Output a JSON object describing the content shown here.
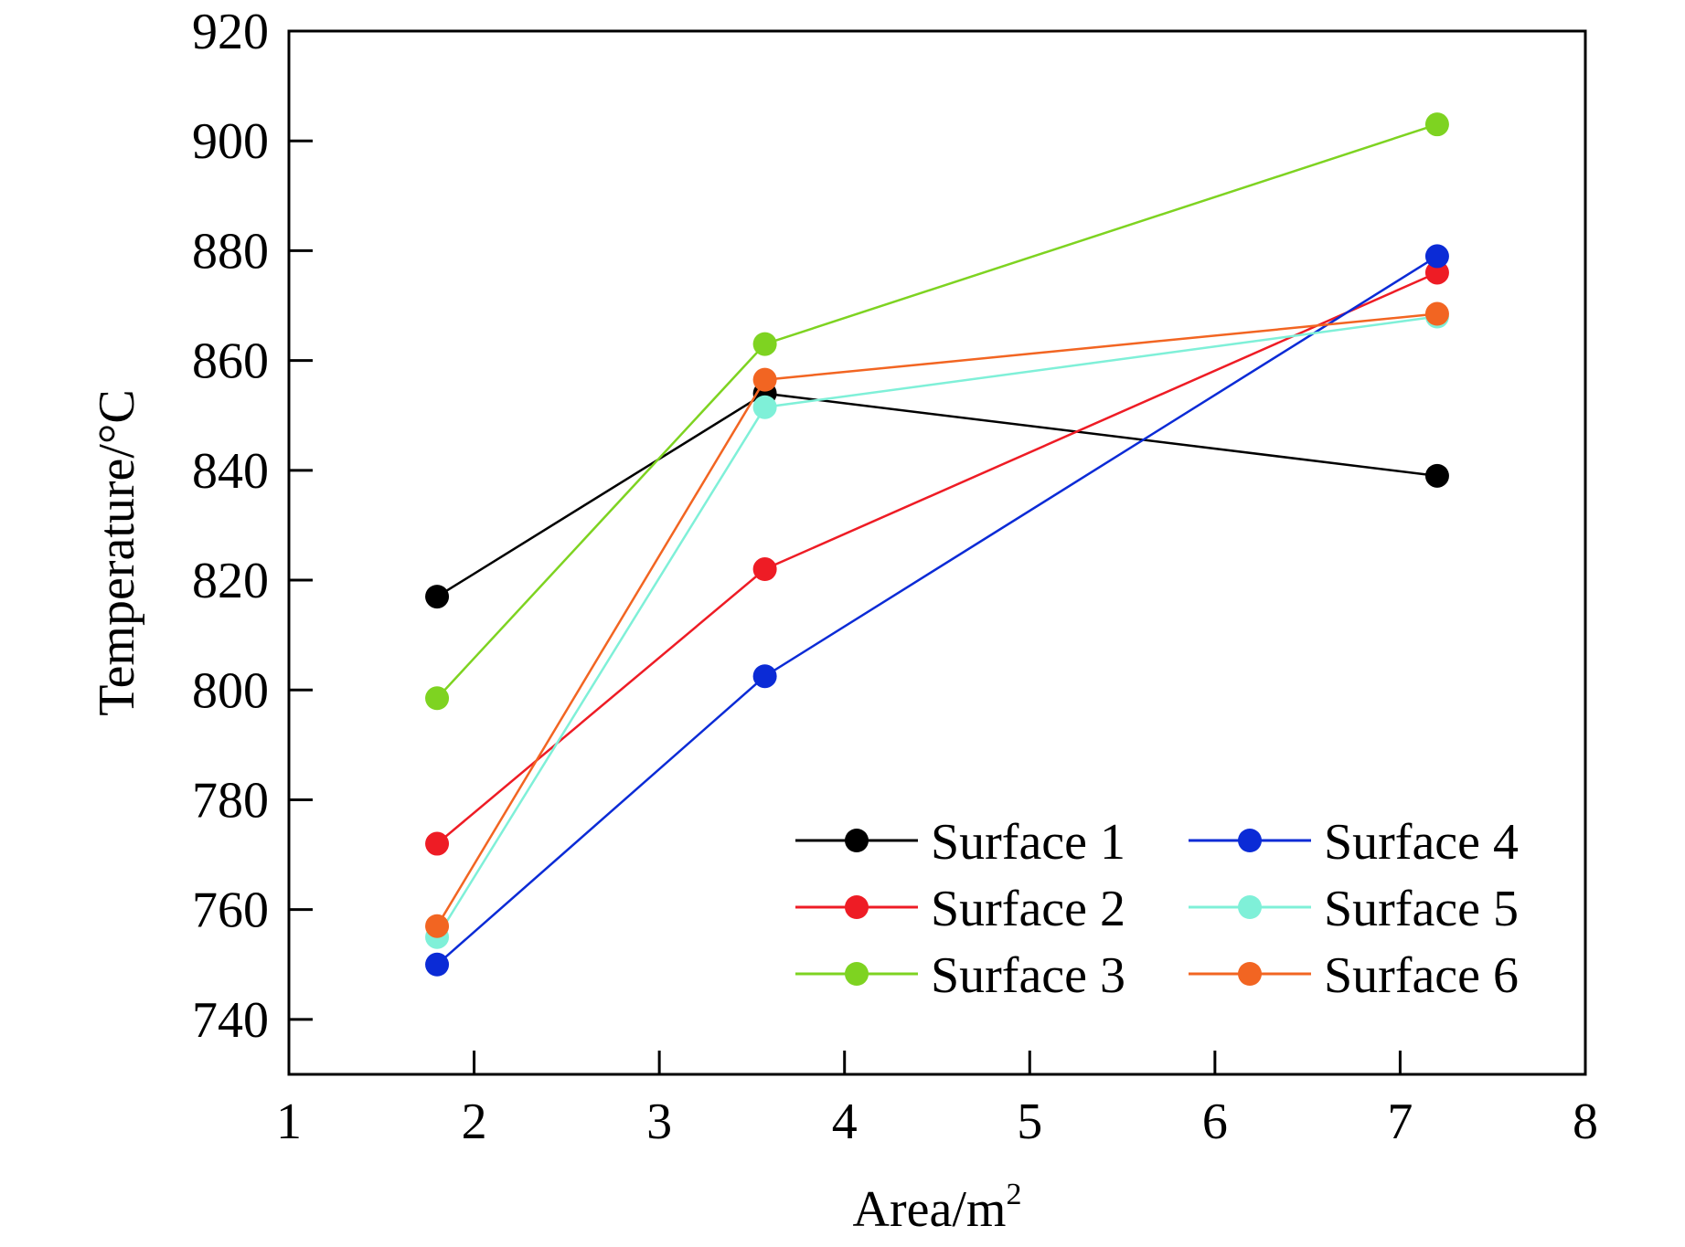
{
  "chart_data": {
    "type": "line",
    "xlabel": "Area/m",
    "xlabel_sup": "2",
    "ylabel": "Temperature/°C",
    "xlim": [
      1,
      8
    ],
    "ylim": [
      730,
      920
    ],
    "xticks": [
      1,
      2,
      3,
      4,
      5,
      6,
      7,
      8
    ],
    "yticks": [
      740,
      760,
      780,
      800,
      820,
      840,
      860,
      880,
      900,
      920
    ],
    "grid": false,
    "legend_position": "bottom-right",
    "x": [
      1.8,
      3.57,
      7.2
    ],
    "series": [
      {
        "name": "Surface 1",
        "color": "#000000",
        "values": [
          817,
          854,
          839
        ]
      },
      {
        "name": "Surface 2",
        "color": "#ee1c25",
        "values": [
          772,
          822,
          876
        ]
      },
      {
        "name": "Surface 3",
        "color": "#7ed321",
        "values": [
          798.5,
          863,
          903
        ]
      },
      {
        "name": "Surface 4",
        "color": "#0b2bd6",
        "values": [
          750,
          802.5,
          879
        ]
      },
      {
        "name": "Surface 5",
        "color": "#7ff0d8",
        "values": [
          755,
          851.5,
          868
        ]
      },
      {
        "name": "Surface 6",
        "color": "#f26522",
        "values": [
          757,
          856.5,
          868.5
        ]
      }
    ]
  }
}
